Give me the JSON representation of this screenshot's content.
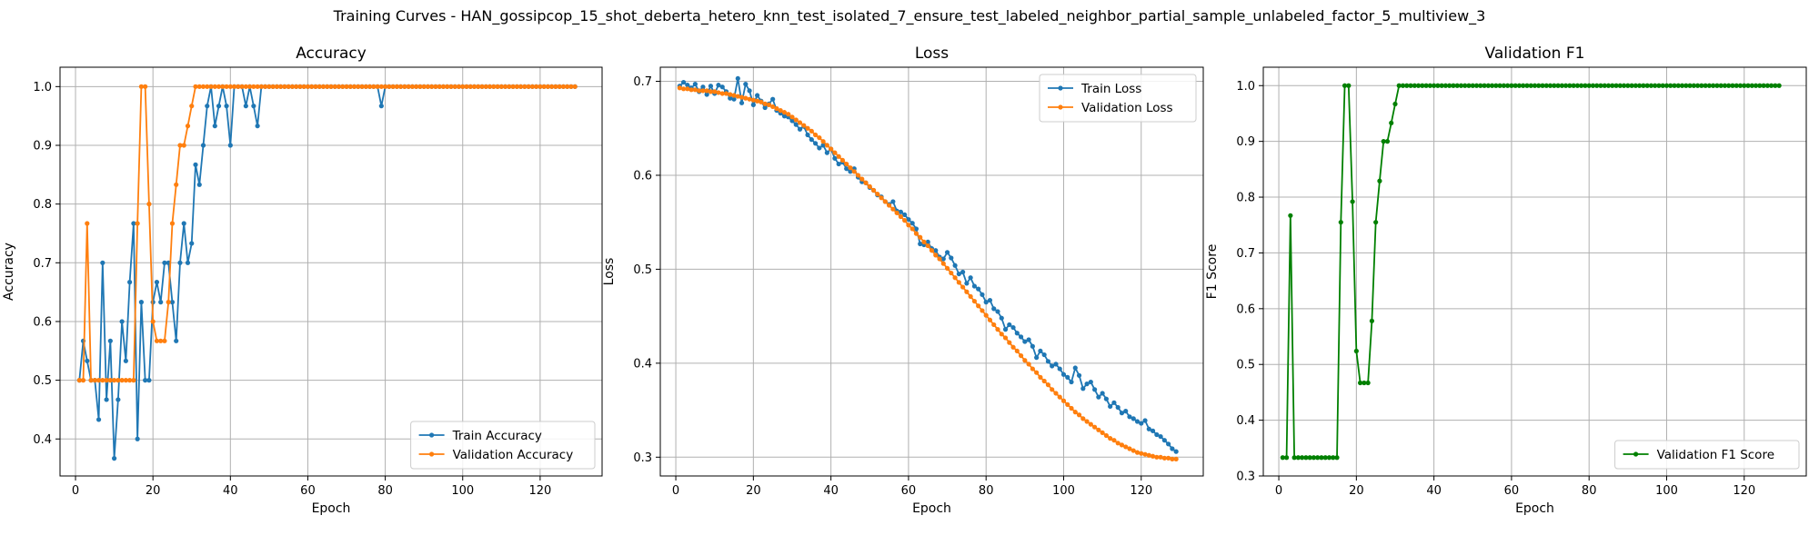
{
  "suptitle": "Training Curves - HAN_gossipcop_15_shot_deberta_hetero_knn_test_isolated_7_ensure_test_labeled_neighbor_partial_sample_unlabeled_factor_5_multiview_3",
  "colors": {
    "blue": "#1f77b4",
    "orange": "#ff7f0e",
    "green": "#008000",
    "grid": "#b0b0b0"
  },
  "chart_data": [
    {
      "type": "line",
      "title": "Accuracy",
      "xlabel": "Epoch",
      "ylabel": "Accuracy",
      "xlim": [
        -4,
        136
      ],
      "ylim": [
        0.337,
        1.033
      ],
      "xticks": [
        0,
        20,
        40,
        60,
        80,
        100,
        120
      ],
      "yticks": [
        0.4,
        0.5,
        0.6,
        0.7,
        0.8,
        0.9,
        1.0
      ],
      "grid": true,
      "legend_position": "lower-right",
      "x_start": 1,
      "series": [
        {
          "name": "Train Accuracy",
          "color": "#1f77b4",
          "values": [
            0.5,
            0.567,
            0.533,
            0.5,
            0.5,
            0.433,
            0.7,
            0.467,
            0.567,
            0.367,
            0.467,
            0.6,
            0.533,
            0.667,
            0.767,
            0.4,
            0.633,
            0.5,
            0.5,
            0.633,
            0.667,
            0.633,
            0.7,
            0.7,
            0.633,
            0.567,
            0.7,
            0.767,
            0.7,
            0.733,
            0.867,
            0.833,
            0.9,
            0.967,
            1.0,
            0.933,
            0.967,
            1.0,
            0.967,
            0.9,
            1.0,
            1.0,
            1.0,
            0.967,
            1.0,
            0.967,
            0.933,
            1.0,
            1.0,
            1.0,
            1.0,
            1.0,
            1.0,
            1.0,
            1.0,
            1.0,
            1.0,
            1.0,
            1.0,
            1.0,
            1.0,
            1.0,
            1.0,
            1.0,
            1.0,
            1.0,
            1.0,
            1.0,
            1.0,
            1.0,
            1.0,
            1.0,
            1.0,
            1.0,
            1.0,
            1.0,
            1.0,
            1.0,
            0.967,
            1.0,
            1.0,
            1.0,
            1.0,
            1.0,
            1.0,
            1.0,
            1.0,
            1.0,
            1.0,
            1.0,
            1.0,
            1.0,
            1.0,
            1.0,
            1.0,
            1.0,
            1.0,
            1.0,
            1.0,
            1.0,
            1.0,
            1.0,
            1.0,
            1.0,
            1.0,
            1.0,
            1.0,
            1.0,
            1.0,
            1.0,
            1.0,
            1.0,
            1.0,
            1.0,
            1.0,
            1.0,
            1.0,
            1.0,
            1.0,
            1.0,
            1.0,
            1.0,
            1.0,
            1.0,
            1.0,
            1.0,
            1.0,
            1.0,
            1.0
          ]
        },
        {
          "name": "Validation Accuracy",
          "color": "#ff7f0e",
          "values": [
            0.5,
            0.5,
            0.767,
            0.5,
            0.5,
            0.5,
            0.5,
            0.5,
            0.5,
            0.5,
            0.5,
            0.5,
            0.5,
            0.5,
            0.5,
            0.767,
            1.0,
            1.0,
            0.8,
            0.6,
            0.567,
            0.567,
            0.567,
            0.633,
            0.767,
            0.833,
            0.9,
            0.9,
            0.933,
            0.967,
            1.0,
            1.0,
            1.0,
            1.0,
            1.0,
            1.0,
            1.0,
            1.0,
            1.0,
            1.0,
            1.0,
            1.0,
            1.0,
            1.0,
            1.0,
            1.0,
            1.0,
            1.0,
            1.0,
            1.0,
            1.0,
            1.0,
            1.0,
            1.0,
            1.0,
            1.0,
            1.0,
            1.0,
            1.0,
            1.0,
            1.0,
            1.0,
            1.0,
            1.0,
            1.0,
            1.0,
            1.0,
            1.0,
            1.0,
            1.0,
            1.0,
            1.0,
            1.0,
            1.0,
            1.0,
            1.0,
            1.0,
            1.0,
            1.0,
            1.0,
            1.0,
            1.0,
            1.0,
            1.0,
            1.0,
            1.0,
            1.0,
            1.0,
            1.0,
            1.0,
            1.0,
            1.0,
            1.0,
            1.0,
            1.0,
            1.0,
            1.0,
            1.0,
            1.0,
            1.0,
            1.0,
            1.0,
            1.0,
            1.0,
            1.0,
            1.0,
            1.0,
            1.0,
            1.0,
            1.0,
            1.0,
            1.0,
            1.0,
            1.0,
            1.0,
            1.0,
            1.0,
            1.0,
            1.0,
            1.0,
            1.0,
            1.0,
            1.0,
            1.0,
            1.0,
            1.0,
            1.0,
            1.0,
            1.0
          ]
        }
      ]
    },
    {
      "type": "line",
      "title": "Loss",
      "xlabel": "Epoch",
      "ylabel": "Loss",
      "xlim": [
        -4,
        136
      ],
      "ylim": [
        0.28,
        0.715
      ],
      "xticks": [
        0,
        20,
        40,
        60,
        80,
        100,
        120
      ],
      "yticks": [
        0.3,
        0.4,
        0.5,
        0.6,
        0.7
      ],
      "grid": true,
      "legend_position": "upper-right",
      "x_start": 1,
      "series": [
        {
          "name": "Train Loss",
          "color": "#1f77b4",
          "values": [
            0.695,
            0.699,
            0.696,
            0.693,
            0.697,
            0.689,
            0.694,
            0.686,
            0.695,
            0.687,
            0.696,
            0.694,
            0.689,
            0.682,
            0.681,
            0.703,
            0.677,
            0.697,
            0.69,
            0.675,
            0.685,
            0.679,
            0.672,
            0.676,
            0.681,
            0.669,
            0.666,
            0.663,
            0.662,
            0.658,
            0.654,
            0.649,
            0.652,
            0.643,
            0.638,
            0.634,
            0.629,
            0.632,
            0.624,
            0.628,
            0.618,
            0.612,
            0.614,
            0.607,
            0.604,
            0.607,
            0.598,
            0.593,
            0.592,
            0.587,
            0.584,
            0.579,
            0.577,
            0.572,
            0.569,
            0.572,
            0.562,
            0.561,
            0.558,
            0.553,
            0.549,
            0.543,
            0.527,
            0.526,
            0.529,
            0.522,
            0.52,
            0.513,
            0.511,
            0.518,
            0.512,
            0.504,
            0.495,
            0.497,
            0.485,
            0.491,
            0.482,
            0.479,
            0.473,
            0.465,
            0.467,
            0.458,
            0.455,
            0.448,
            0.436,
            0.441,
            0.438,
            0.432,
            0.428,
            0.423,
            0.425,
            0.418,
            0.406,
            0.413,
            0.409,
            0.402,
            0.397,
            0.399,
            0.394,
            0.388,
            0.385,
            0.38,
            0.395,
            0.387,
            0.373,
            0.378,
            0.38,
            0.372,
            0.364,
            0.368,
            0.362,
            0.354,
            0.358,
            0.353,
            0.347,
            0.349,
            0.343,
            0.341,
            0.338,
            0.336,
            0.339,
            0.33,
            0.328,
            0.324,
            0.322,
            0.318,
            0.314,
            0.309,
            0.306
          ]
        },
        {
          "name": "Validation Loss",
          "color": "#ff7f0e",
          "values": [
            0.693,
            0.692,
            0.692,
            0.691,
            0.691,
            0.69,
            0.69,
            0.69,
            0.689,
            0.689,
            0.688,
            0.687,
            0.687,
            0.686,
            0.685,
            0.684,
            0.683,
            0.682,
            0.681,
            0.68,
            0.679,
            0.678,
            0.676,
            0.675,
            0.673,
            0.671,
            0.669,
            0.667,
            0.665,
            0.662,
            0.659,
            0.656,
            0.653,
            0.65,
            0.647,
            0.643,
            0.64,
            0.636,
            0.632,
            0.628,
            0.624,
            0.62,
            0.616,
            0.612,
            0.608,
            0.604,
            0.6,
            0.596,
            0.592,
            0.588,
            0.584,
            0.58,
            0.576,
            0.572,
            0.568,
            0.564,
            0.56,
            0.556,
            0.552,
            0.547,
            0.543,
            0.538,
            0.534,
            0.529,
            0.525,
            0.52,
            0.515,
            0.511,
            0.506,
            0.501,
            0.496,
            0.491,
            0.486,
            0.481,
            0.476,
            0.471,
            0.466,
            0.461,
            0.456,
            0.451,
            0.446,
            0.441,
            0.436,
            0.431,
            0.427,
            0.422,
            0.417,
            0.413,
            0.408,
            0.403,
            0.399,
            0.394,
            0.39,
            0.385,
            0.381,
            0.377,
            0.372,
            0.368,
            0.364,
            0.36,
            0.356,
            0.352,
            0.348,
            0.345,
            0.341,
            0.338,
            0.335,
            0.332,
            0.329,
            0.326,
            0.323,
            0.32,
            0.318,
            0.315,
            0.313,
            0.311,
            0.309,
            0.307,
            0.305,
            0.304,
            0.303,
            0.302,
            0.301,
            0.3,
            0.3,
            0.299,
            0.299,
            0.298,
            0.298
          ]
        }
      ]
    },
    {
      "type": "line",
      "title": "Validation F1",
      "xlabel": "Epoch",
      "ylabel": "F1 Score",
      "xlim": [
        -4,
        136
      ],
      "ylim": [
        0.3,
        1.033
      ],
      "xticks": [
        0,
        20,
        40,
        60,
        80,
        100,
        120
      ],
      "yticks": [
        0.3,
        0.4,
        0.5,
        0.6,
        0.7,
        0.8,
        0.9,
        1.0
      ],
      "grid": true,
      "legend_position": "lower-right",
      "x_start": 1,
      "series": [
        {
          "name": "Validation F1 Score",
          "color": "#008000",
          "values": [
            0.333,
            0.333,
            0.767,
            0.333,
            0.333,
            0.333,
            0.333,
            0.333,
            0.333,
            0.333,
            0.333,
            0.333,
            0.333,
            0.333,
            0.333,
            0.755,
            1.0,
            1.0,
            0.792,
            0.524,
            0.467,
            0.467,
            0.467,
            0.578,
            0.755,
            0.829,
            0.9,
            0.9,
            0.933,
            0.967,
            1.0,
            1.0,
            1.0,
            1.0,
            1.0,
            1.0,
            1.0,
            1.0,
            1.0,
            1.0,
            1.0,
            1.0,
            1.0,
            1.0,
            1.0,
            1.0,
            1.0,
            1.0,
            1.0,
            1.0,
            1.0,
            1.0,
            1.0,
            1.0,
            1.0,
            1.0,
            1.0,
            1.0,
            1.0,
            1.0,
            1.0,
            1.0,
            1.0,
            1.0,
            1.0,
            1.0,
            1.0,
            1.0,
            1.0,
            1.0,
            1.0,
            1.0,
            1.0,
            1.0,
            1.0,
            1.0,
            1.0,
            1.0,
            1.0,
            1.0,
            1.0,
            1.0,
            1.0,
            1.0,
            1.0,
            1.0,
            1.0,
            1.0,
            1.0,
            1.0,
            1.0,
            1.0,
            1.0,
            1.0,
            1.0,
            1.0,
            1.0,
            1.0,
            1.0,
            1.0,
            1.0,
            1.0,
            1.0,
            1.0,
            1.0,
            1.0,
            1.0,
            1.0,
            1.0,
            1.0,
            1.0,
            1.0,
            1.0,
            1.0,
            1.0,
            1.0,
            1.0,
            1.0,
            1.0,
            1.0,
            1.0,
            1.0,
            1.0,
            1.0,
            1.0,
            1.0,
            1.0,
            1.0,
            1.0
          ]
        }
      ]
    }
  ]
}
